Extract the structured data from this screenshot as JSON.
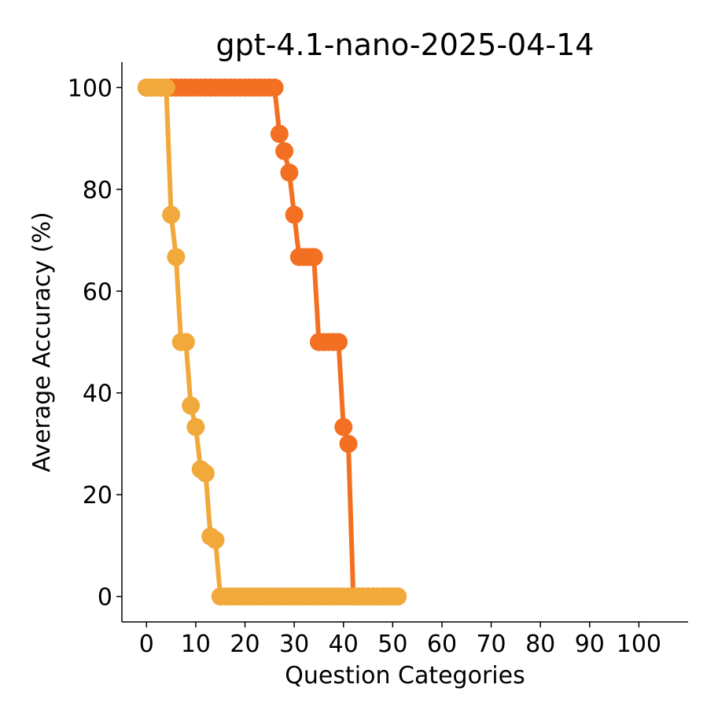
{
  "chart_data": {
    "type": "line",
    "title": "gpt-4.1-nano-2025-04-14",
    "xlabel": "Question Categories",
    "ylabel": "Average Accuracy (%)",
    "xlim": [
      -5,
      110
    ],
    "ylim": [
      -5,
      105
    ],
    "xticks": [
      0,
      10,
      20,
      30,
      40,
      50,
      60,
      70,
      80,
      90,
      100
    ],
    "yticks": [
      0,
      20,
      40,
      60,
      80,
      100
    ],
    "grid": false,
    "series": [
      {
        "color": "#F36F21",
        "x": [
          0,
          1,
          2,
          3,
          4,
          5,
          6,
          7,
          8,
          9,
          10,
          11,
          12,
          13,
          14,
          15,
          16,
          17,
          18,
          19,
          20,
          21,
          22,
          23,
          24,
          25,
          26,
          27,
          28,
          29,
          30,
          31,
          32,
          33,
          34,
          35,
          36,
          37,
          38,
          39,
          40,
          41,
          42,
          43,
          44,
          45,
          46,
          47,
          48,
          49,
          50,
          51
        ],
        "y": [
          100,
          100,
          100,
          100,
          100,
          100,
          100,
          100,
          100,
          100,
          100,
          100,
          100,
          100,
          100,
          100,
          100,
          100,
          100,
          100,
          100,
          100,
          100,
          100,
          100,
          100,
          100,
          90.9,
          87.5,
          83.3,
          75,
          66.7,
          66.7,
          66.7,
          66.7,
          50,
          50,
          50,
          50,
          50,
          33.3,
          30,
          0,
          0,
          0,
          0,
          0,
          0,
          0,
          0,
          0,
          0
        ]
      },
      {
        "color": "#F2A93B",
        "x": [
          0,
          1,
          2,
          3,
          4,
          5,
          6,
          7,
          8,
          9,
          10,
          11,
          12,
          13,
          14,
          15,
          16,
          17,
          18,
          19,
          20,
          21,
          22,
          23,
          24,
          25,
          26,
          27,
          28,
          29,
          30,
          31,
          32,
          33,
          34,
          35,
          36,
          37,
          38,
          39,
          40,
          41,
          42,
          43,
          44,
          45,
          46,
          47,
          48,
          49,
          50,
          51
        ],
        "y": [
          100,
          100,
          100,
          100,
          100,
          75,
          66.7,
          50,
          50,
          37.5,
          33.3,
          25,
          24.2,
          11.8,
          11.1,
          0,
          0,
          0,
          0,
          0,
          0,
          0,
          0,
          0,
          0,
          0,
          0,
          0,
          0,
          0,
          0,
          0,
          0,
          0,
          0,
          0,
          0,
          0,
          0,
          0,
          0,
          0,
          0,
          0,
          0,
          0,
          0,
          0,
          0,
          0,
          0,
          0
        ]
      }
    ]
  }
}
